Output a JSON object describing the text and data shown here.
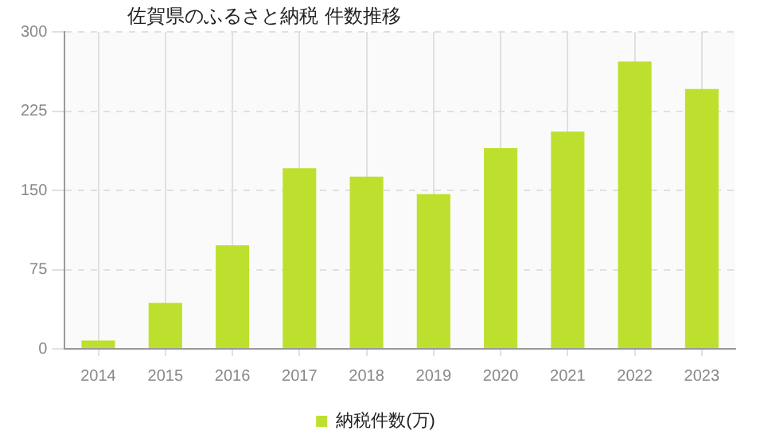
{
  "chart_data": {
    "type": "bar",
    "title": "佐賀県のふるさと納税 件数推移",
    "categories": [
      "2014",
      "2015",
      "2016",
      "2017",
      "2018",
      "2019",
      "2020",
      "2021",
      "2022",
      "2023"
    ],
    "series": [
      {
        "name": "納税件数(万)",
        "color": "#bde02f",
        "values": [
          8,
          43.5,
          98,
          171,
          163,
          146.5,
          190,
          205.5,
          272,
          246
        ]
      }
    ],
    "ylim": [
      0,
      300
    ],
    "yticks": [
      0,
      75,
      150,
      225,
      300
    ],
    "grid": true,
    "legend": "bottom"
  }
}
